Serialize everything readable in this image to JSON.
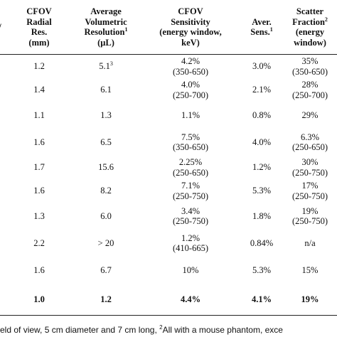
{
  "table": {
    "headers": [
      {
        "lines": [
          "/"
        ]
      },
      {
        "lines": [
          "CFOV",
          "Radial",
          "Res.",
          "(mm)"
        ]
      },
      {
        "lines": [
          "Average",
          "Volumetric",
          "Resolution",
          "(μL)"
        ],
        "sup_after_line": 2,
        "sup": "1"
      },
      {
        "lines": [
          "CFOV",
          "Sensitivity",
          "(energy window,",
          "keV)"
        ]
      },
      {
        "lines": [
          "Aver.",
          "Sens."
        ],
        "sup_after_line": 1,
        "sup": "1"
      },
      {
        "lines": [
          "Scatter",
          "Fraction",
          "(energy",
          "window)"
        ],
        "sup_after_line": 1,
        "sup": "2"
      }
    ],
    "rows": [
      {
        "radial": "1.2",
        "volumetric": "5.1",
        "volumetric_sup": "3",
        "sensitivity": [
          "4.2%",
          "(350-650)"
        ],
        "aver_sens": "3.0%",
        "scatter": [
          "35%",
          "(350-650)"
        ]
      },
      {
        "radial": "1.4",
        "volumetric": "6.1",
        "sensitivity": [
          "4.0%",
          "(250-700)"
        ],
        "aver_sens": "2.1%",
        "scatter": [
          "28%",
          "(250-700)"
        ]
      },
      {
        "radial": "1.1",
        "volumetric": "1.3",
        "sensitivity": [
          "1.1%"
        ],
        "aver_sens": "0.8%",
        "scatter": [
          "29%"
        ],
        "tall": true
      },
      {
        "radial": "1.6",
        "volumetric": "6.5",
        "sensitivity": [
          "7.5%",
          "(350-650)"
        ],
        "aver_sens": "4.0%",
        "scatter": [
          "6.3%",
          "(250-650)"
        ],
        "tall": true
      },
      {
        "radial": "1.7",
        "volumetric": "15.6",
        "sensitivity": [
          "2.25%",
          "(250-650)"
        ],
        "aver_sens": "1.2%",
        "scatter": [
          "30%",
          "(250-750)"
        ]
      },
      {
        "radial": "1.6",
        "volumetric": "8.2",
        "sensitivity": [
          "7.1%",
          "(250-750)"
        ],
        "aver_sens": "5.3%",
        "scatter": [
          "17%",
          "(250-750)"
        ]
      },
      {
        "radial": "1.3",
        "volumetric": "6.0",
        "sensitivity": [
          "3.4%",
          "(250-750)"
        ],
        "aver_sens": "1.8%",
        "scatter": [
          "19%",
          "(250-750)"
        ],
        "tall": true
      },
      {
        "radial": "2.2",
        "volumetric": "> 20",
        "sensitivity": [
          "1.2%",
          "(410-665)"
        ],
        "aver_sens": "0.84%",
        "scatter": [
          "n/a"
        ],
        "tall": true
      },
      {
        "radial": "1.6",
        "volumetric": "6.7",
        "sensitivity": [
          "10%"
        ],
        "aver_sens": "5.3%",
        "scatter": [
          "15%"
        ],
        "tall": true
      }
    ],
    "total_row": {
      "radial": "1.0",
      "volumetric": "1.2",
      "sensitivity": "4.4%",
      "aver_sens": "4.1%",
      "scatter": "19%"
    }
  },
  "footnote": {
    "text_before_sup": "eld of view, 5 cm diameter and 7 cm long, ",
    "sup": "2",
    "text_after_sup": "All with a mouse phantom, exce"
  }
}
